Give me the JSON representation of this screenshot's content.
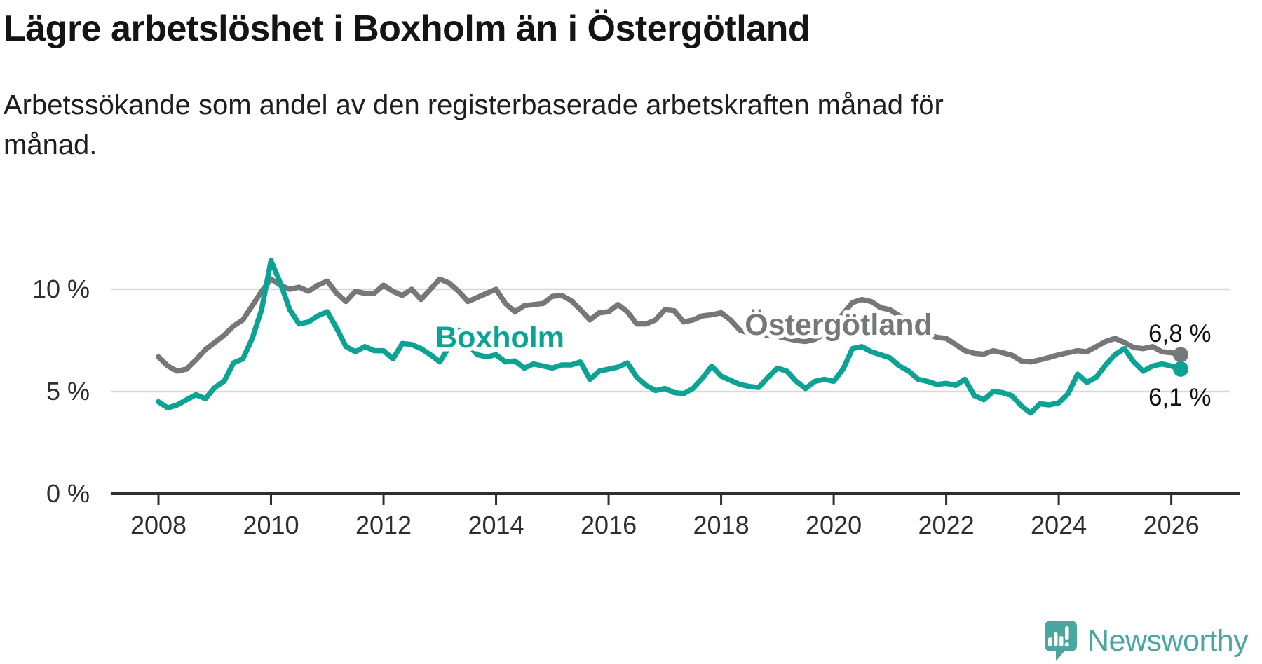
{
  "title": "Lägre arbetslöshet i Boxholm än i Östergötland",
  "subtitle": "Arbetssökande som andel av den registerbaserade arbetskraften månad för månad.",
  "branding": {
    "logo_text": "Newsworthy",
    "logo_color": "#4aa79f",
    "logo_icon": "speech-bubble-bar-chart-icon"
  },
  "colors": {
    "boxholm_teal": "#0da394",
    "ostergotland_gray": "#76777a",
    "gridline": "#d9d9d9",
    "axis": "#2e2e2e",
    "text_dark": "#141414",
    "value_label": "#111111"
  },
  "chart_data": {
    "type": "line",
    "title": "Lägre arbetslöshet i Boxholm än i Östergötland",
    "subtitle": "Arbetssökande som andel av den registerbaserade arbetskraften månad för månad.",
    "unit": "%",
    "x_start_year": 2008.0,
    "x_end_year": 2026.17,
    "x_step_months": 2,
    "x_axis_ticks": [
      2008,
      2010,
      2012,
      2014,
      2016,
      2018,
      2020,
      2022,
      2024,
      2026
    ],
    "y_axis": {
      "tick_labels": [
        "0 %",
        "5 %",
        "10 %"
      ],
      "tick_values": [
        0,
        5,
        10
      ],
      "gridline_values": [
        5,
        10
      ],
      "ylim": [
        0,
        13.4
      ],
      "grid": "horizontal-only"
    },
    "legend_position": "inline-labels-on-lines",
    "series": [
      {
        "name": "Östergötland",
        "slug": "ostergotland",
        "color": "#76777a",
        "end_label": "6,8 %",
        "end_value": 6.8,
        "values": [
          6.7,
          6.25,
          6.0,
          6.1,
          6.55,
          7.05,
          7.4,
          7.75,
          8.2,
          8.5,
          9.2,
          9.9,
          10.5,
          10.2,
          10.0,
          10.1,
          9.9,
          10.2,
          10.4,
          9.8,
          9.4,
          9.9,
          9.8,
          9.8,
          10.2,
          9.9,
          9.7,
          10.0,
          9.5,
          10.0,
          10.5,
          10.3,
          9.9,
          9.4,
          9.6,
          9.8,
          10.0,
          9.3,
          8.9,
          9.2,
          9.25,
          9.3,
          9.65,
          9.7,
          9.45,
          9.0,
          8.5,
          8.85,
          8.9,
          9.25,
          8.9,
          8.3,
          8.3,
          8.5,
          9.0,
          8.95,
          8.4,
          8.5,
          8.7,
          8.75,
          8.85,
          8.5,
          8.0,
          7.85,
          7.8,
          7.75,
          7.7,
          7.6,
          7.5,
          7.45,
          7.55,
          7.8,
          8.2,
          8.8,
          9.35,
          9.5,
          9.4,
          9.1,
          9.0,
          8.7,
          8.4,
          8.1,
          7.8,
          7.65,
          7.6,
          7.3,
          7.0,
          6.87,
          6.83,
          7.0,
          6.9,
          6.78,
          6.5,
          6.45,
          6.55,
          6.67,
          6.8,
          6.9,
          7.0,
          6.95,
          7.2,
          7.45,
          7.6,
          7.4,
          7.15,
          7.1,
          7.2,
          6.95,
          6.9,
          6.8
        ]
      },
      {
        "name": "Boxholm",
        "slug": "boxholm",
        "color": "#0da394",
        "end_label": "6,1 %",
        "end_value": 6.1,
        "values": [
          4.5,
          4.2,
          4.35,
          4.6,
          4.85,
          4.65,
          5.2,
          5.5,
          6.4,
          6.6,
          7.6,
          9.0,
          11.4,
          10.3,
          9.0,
          8.3,
          8.4,
          8.7,
          8.9,
          8.1,
          7.2,
          6.95,
          7.2,
          7.0,
          7.0,
          6.6,
          7.35,
          7.3,
          7.1,
          6.8,
          6.45,
          7.2,
          8.0,
          7.3,
          6.8,
          6.7,
          6.8,
          6.45,
          6.5,
          6.15,
          6.35,
          6.25,
          6.15,
          6.3,
          6.3,
          6.45,
          5.6,
          6.0,
          6.1,
          6.2,
          6.4,
          5.7,
          5.3,
          5.05,
          5.15,
          4.95,
          4.9,
          5.15,
          5.65,
          6.25,
          5.75,
          5.55,
          5.35,
          5.25,
          5.2,
          5.7,
          6.15,
          6.0,
          5.5,
          5.15,
          5.5,
          5.6,
          5.5,
          6.1,
          7.1,
          7.2,
          6.95,
          6.8,
          6.65,
          6.25,
          6.0,
          5.6,
          5.5,
          5.35,
          5.4,
          5.3,
          5.6,
          4.8,
          4.6,
          5.0,
          4.95,
          4.8,
          4.3,
          3.95,
          4.4,
          4.35,
          4.45,
          4.9,
          5.85,
          5.45,
          5.7,
          6.3,
          6.8,
          7.1,
          6.45,
          6.0,
          6.25,
          6.35,
          6.25,
          6.1
        ]
      }
    ]
  }
}
